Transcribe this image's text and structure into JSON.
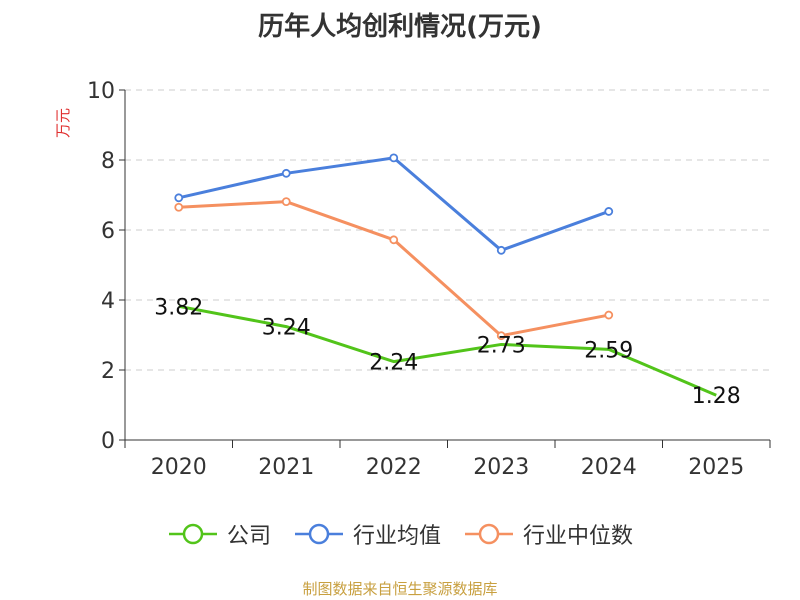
{
  "chart_data": {
    "type": "line",
    "title": "历年人均创利情况(万元)",
    "ylabel": "万元",
    "xlabel": "",
    "categories": [
      "2020",
      "2021",
      "2022",
      "2023",
      "2024",
      "2025"
    ],
    "ylim": [
      0,
      10
    ],
    "yticks": [
      0,
      2,
      4,
      6,
      8,
      10
    ],
    "grid": true,
    "legend_position": "bottom",
    "series": [
      {
        "name": "公司",
        "color": "#52c41a",
        "values": [
          3.82,
          3.24,
          2.24,
          2.73,
          2.59,
          1.28
        ],
        "labels": [
          "3.82",
          "3.24",
          "2.24",
          "2.73",
          "2.59",
          "1.28"
        ],
        "show_labels": true
      },
      {
        "name": "行业均值",
        "color": "#4a7fdc",
        "values": [
          6.92,
          7.62,
          8.06,
          5.42,
          6.53,
          null
        ],
        "show_labels": false
      },
      {
        "name": "行业中位数",
        "color": "#f59060",
        "values": [
          6.65,
          6.81,
          5.72,
          2.98,
          3.57,
          null
        ],
        "show_labels": false
      }
    ]
  },
  "source": "制图数据来自恒生聚源数据库"
}
